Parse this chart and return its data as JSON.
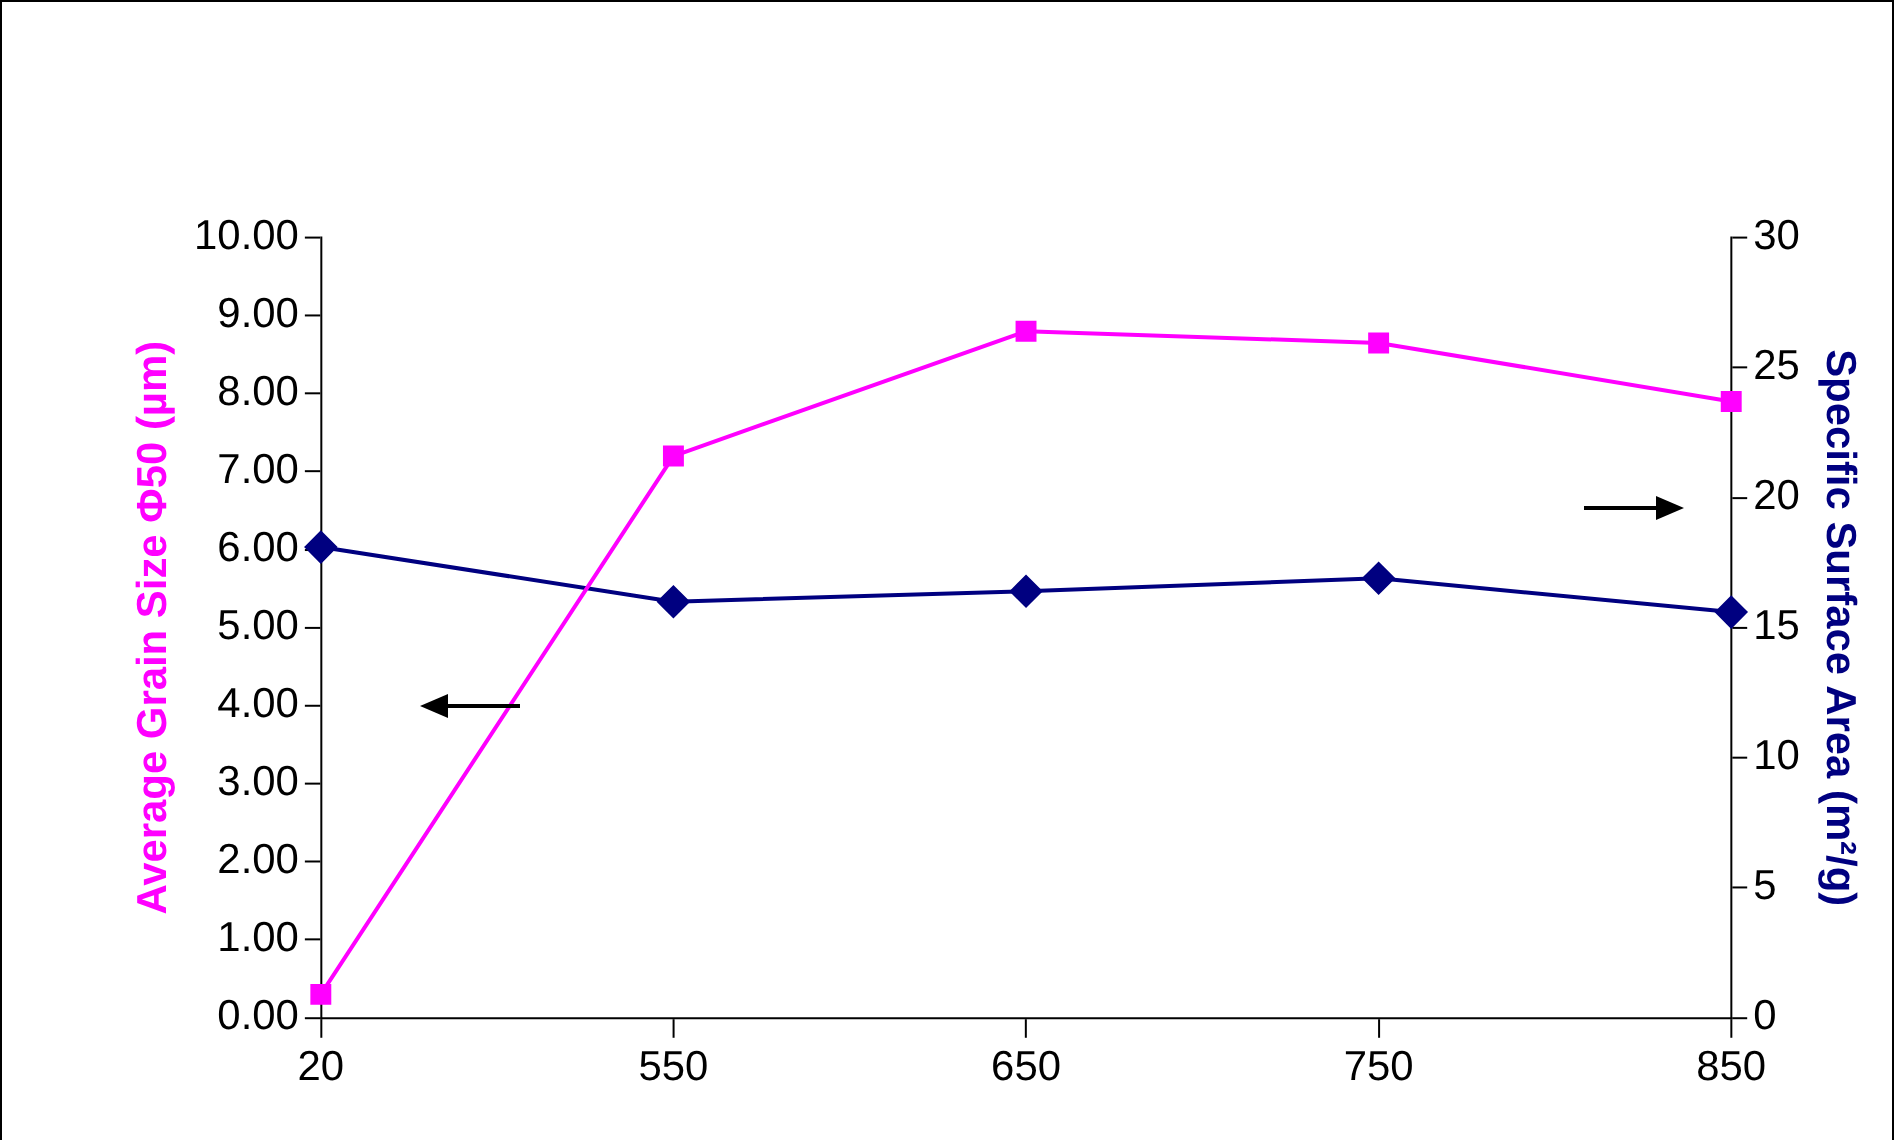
{
  "chart_data": {
    "type": "line",
    "ylabel": "Average Grain Size Φ50 (µm)",
    "y2label": "Specific Surface Area (m²/g)",
    "categories": [
      "20",
      "550",
      "650",
      "750",
      "850"
    ],
    "series": [
      {
        "color": "#ff00ff",
        "marker": "square",
        "values": [
          0.3,
          7.2,
          8.8,
          8.65,
          7.9
        ]
      },
      {
        "color": "#000080",
        "marker": "diamond",
        "axis": "y2",
        "values": [
          18.1,
          16.0,
          16.4,
          16.9,
          15.6
        ]
      }
    ],
    "ylim": [
      0,
      10
    ],
    "yticks": [
      {
        "value": 0,
        "label": "0.00"
      },
      {
        "value": 1,
        "label": "1.00"
      },
      {
        "value": 2,
        "label": "2.00"
      },
      {
        "value": 3,
        "label": "3.00"
      },
      {
        "value": 4,
        "label": "4.00"
      },
      {
        "value": 5,
        "label": "5.00"
      },
      {
        "value": 6,
        "label": "6.00"
      },
      {
        "value": 7,
        "label": "7.00"
      },
      {
        "value": 8,
        "label": "8.00"
      },
      {
        "value": 9,
        "label": "9.00"
      },
      {
        "value": 10,
        "label": "10.00"
      }
    ],
    "y2lim": [
      0,
      30
    ],
    "y2ticks": [
      0,
      5,
      10,
      15,
      20,
      25,
      30
    ],
    "grid": false,
    "legend": false
  }
}
